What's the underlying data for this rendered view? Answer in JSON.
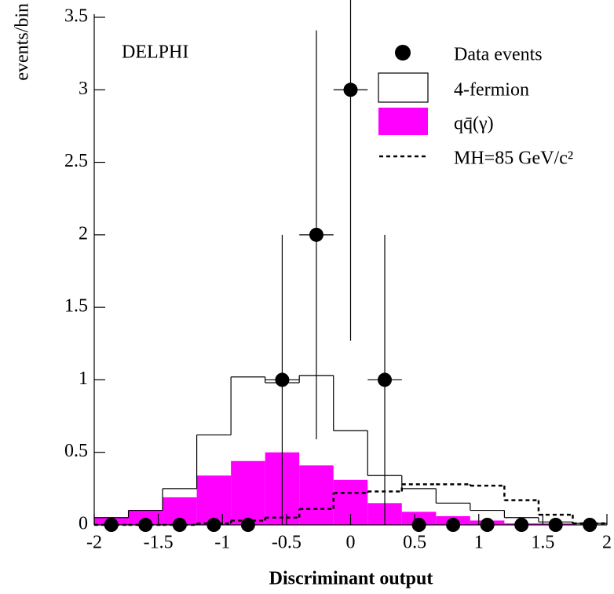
{
  "chart_data": {
    "type": "histogram",
    "annotation": "DELPHI",
    "x_label": "Discriminant output",
    "y_label": "events/bin",
    "bins": [
      -2,
      -1.7333,
      -1.4667,
      -1.2,
      -0.9333,
      -0.6667,
      -0.4,
      -0.1333,
      0.1333,
      0.4,
      0.6667,
      0.9333,
      1.2,
      1.4667,
      1.7333,
      2
    ],
    "stacked": true,
    "series": [
      {
        "name": "Data events",
        "style": "points",
        "color": "#000000",
        "values": [
          0,
          0,
          0,
          0,
          0,
          1,
          2,
          3,
          1,
          0,
          0,
          0,
          0,
          0,
          0
        ],
        "errors": [
          0,
          0,
          0,
          0,
          0,
          1,
          1.41,
          1.73,
          1,
          0,
          0,
          0,
          0,
          0,
          0
        ]
      },
      {
        "name": "4-fermion",
        "style": "outline",
        "stack": true,
        "color": "#000000",
        "values": [
          0,
          0,
          0.06,
          0.28,
          0.58,
          0.48,
          0.62,
          0.34,
          0.19,
          0.16,
          0.09,
          0.07,
          0.04,
          0.01,
          0.01
        ]
      },
      {
        "name": "qq̄(γ)",
        "style": "filled",
        "stack": true,
        "color": "#ff00ff",
        "values": [
          0.05,
          0.1,
          0.19,
          0.34,
          0.44,
          0.5,
          0.41,
          0.31,
          0.15,
          0.09,
          0.06,
          0.03,
          0.01,
          0.01,
          0
        ]
      },
      {
        "name": "MH=85 GeV/c²",
        "style": "dashed",
        "color": "#000000",
        "values": [
          0,
          0,
          0,
          0.01,
          0.03,
          0.05,
          0.11,
          0.22,
          0.23,
          0.28,
          0.28,
          0.27,
          0.17,
          0.07,
          0.01
        ]
      }
    ],
    "xlim": [
      -2,
      2
    ],
    "xticks": [
      -2,
      -1.5,
      -1,
      -0.5,
      0,
      0.5,
      1,
      1.5,
      2
    ],
    "ylim": [
      0,
      3.5
    ],
    "yticks": [
      0,
      0.5,
      1,
      1.5,
      2,
      2.5,
      3,
      3.5
    ]
  }
}
